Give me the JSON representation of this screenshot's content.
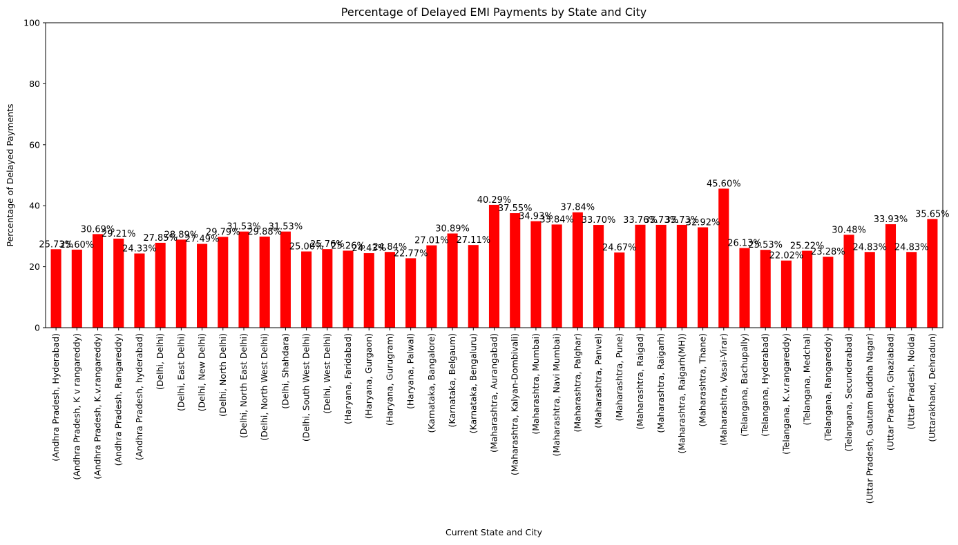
{
  "chart_data": {
    "type": "bar",
    "title": "Percentage of Delayed EMI Payments by State and City",
    "xlabel": "Current State and City",
    "ylabel": "Percentage of Delayed Payments",
    "ylim": [
      0,
      100
    ],
    "yticks": [
      0,
      20,
      40,
      60,
      80,
      100
    ],
    "bar_color": "#ff0000",
    "categories": [
      "(Andhra Pradesh, Hyderabad)",
      "(Andhra Pradesh, K v rangareddy)",
      "(Andhra Pradesh, K.v.rangareddy)",
      "(Andhra Pradesh, Rangareddy)",
      "(Andhra Pradesh, hyderabad)",
      "(Delhi, Delhi)",
      "(Delhi, East Delhi)",
      "(Delhi, New Delhi)",
      "(Delhi, North Delhi)",
      "(Delhi, North East Delhi)",
      "(Delhi, North West Delhi)",
      "(Delhi, Shahdara)",
      "(Delhi, South West Delhi)",
      "(Delhi, West Delhi)",
      "(Haryana, Faridabad)",
      "(Haryana, Gurgaon)",
      "(Haryana, Gurugram)",
      "(Haryana, Palwal)",
      "(Karnataka, Bangalore)",
      "(Karnataka, Belgaum)",
      "(Karnataka, Bengaluru)",
      "(Maharashtra, Aurangabad)",
      "(Maharashtra, Kalyan-Dombivali)",
      "(Maharashtra, Mumbai)",
      "(Maharashtra, Navi Mumbai)",
      "(Maharashtra, Palghar)",
      "(Maharashtra, Panvel)",
      "(Maharashtra, Pune)",
      "(Maharashtra, Raigad)",
      "(Maharashtra, Raigarh)",
      "(Maharashtra, Raigarh(MH))",
      "(Maharashtra, Thane)",
      "(Maharashtra, Vasai-Virar)",
      "(Telangana, Bachupally)",
      "(Telangana, Hyderabad)",
      "(Telangana, K.v.rangareddy)",
      "(Telangana, Medchal)",
      "(Telangana, Rangareddy)",
      "(Telangana, Secunderabad)",
      "(Uttar Pradesh, Gautam Buddha Nagar)",
      "(Uttar Pradesh, Ghaziabad)",
      "(Uttar Pradesh, Noida)",
      "(Uttarakhand, Dehradun)"
    ],
    "values": [
      25.73,
      25.6,
      30.69,
      29.21,
      24.33,
      27.85,
      28.89,
      27.49,
      29.79,
      31.53,
      29.88,
      31.53,
      25.0,
      25.76,
      25.26,
      24.43,
      24.84,
      22.77,
      27.01,
      30.89,
      27.11,
      40.29,
      37.55,
      34.93,
      33.84,
      37.84,
      33.7,
      24.67,
      33.76,
      33.73,
      33.73,
      32.92,
      45.6,
      26.13,
      25.53,
      22.02,
      25.22,
      23.28,
      30.48,
      24.83,
      33.93,
      24.83,
      35.65
    ],
    "data_labels": [
      "25.73%",
      "25.60%",
      "30.69%",
      "29.21%",
      "24.33%",
      "27.85%",
      "28.89%",
      "27.49%",
      "29.79%",
      "31.53%",
      "29.88%",
      "31.53%",
      "25.00%",
      "25.76%",
      "25.26%",
      "24.43%",
      "24.84%",
      "22.77%",
      "27.01%",
      "30.89%",
      "27.11%",
      "40.29%",
      "37.55%",
      "34.93%",
      "33.84%",
      "37.84%",
      "33.70%",
      "24.67%",
      "33.76%",
      "33.73%",
      "33.73%",
      "32.92%",
      "45.60%",
      "26.13%",
      "25.53%",
      "22.02%",
      "25.22%",
      "23.28%",
      "30.48%",
      "24.83%",
      "33.93%",
      "24.83%",
      "35.65%"
    ],
    "grid": false,
    "legend": "none"
  }
}
